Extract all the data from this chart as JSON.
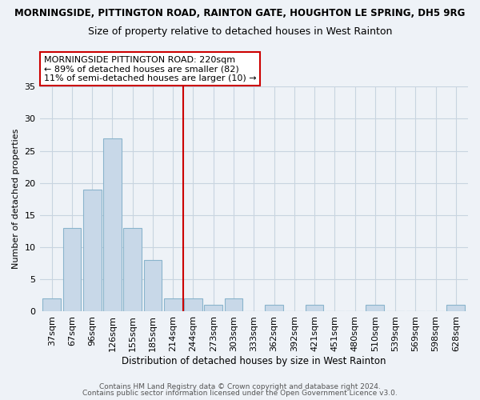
{
  "title_main": "MORNINGSIDE, PITTINGTON ROAD, RAINTON GATE, HOUGHTON LE SPRING, DH5 9RG",
  "title_sub": "Size of property relative to detached houses in West Rainton",
  "xlabel": "Distribution of detached houses by size in West Rainton",
  "ylabel": "Number of detached properties",
  "bin_labels": [
    "37sqm",
    "67sqm",
    "96sqm",
    "126sqm",
    "155sqm",
    "185sqm",
    "214sqm",
    "244sqm",
    "273sqm",
    "303sqm",
    "333sqm",
    "362sqm",
    "392sqm",
    "421sqm",
    "451sqm",
    "480sqm",
    "510sqm",
    "539sqm",
    "569sqm",
    "598sqm",
    "628sqm"
  ],
  "bar_heights": [
    2,
    13,
    19,
    27,
    13,
    8,
    2,
    2,
    1,
    2,
    0,
    1,
    0,
    1,
    0,
    0,
    1,
    0,
    0,
    0,
    1
  ],
  "bar_color": "#c8d8e8",
  "bar_edge_color": "#8ab4cc",
  "vline_x": 6.5,
  "vline_color": "#cc0000",
  "annotation_text": "MORNINGSIDE PITTINGTON ROAD: 220sqm\n← 89% of detached houses are smaller (82)\n11% of semi-detached houses are larger (10) →",
  "annotation_box_color": "#ffffff",
  "annotation_box_edge": "#cc0000",
  "ylim": [
    0,
    35
  ],
  "yticks": [
    0,
    5,
    10,
    15,
    20,
    25,
    30,
    35
  ],
  "footer_line1": "Contains HM Land Registry data © Crown copyright and database right 2024.",
  "footer_line2": "Contains public sector information licensed under the Open Government Licence v3.0.",
  "bg_color": "#eef2f7",
  "plot_bg_color": "#eef2f7",
  "grid_color": "#c8d4e0",
  "annotation_fontsize": 8.0,
  "title_main_fontsize": 8.5,
  "title_sub_fontsize": 9.0,
  "xlabel_fontsize": 8.5,
  "ylabel_fontsize": 8.0,
  "tick_fontsize": 8.0,
  "footer_fontsize": 6.5
}
